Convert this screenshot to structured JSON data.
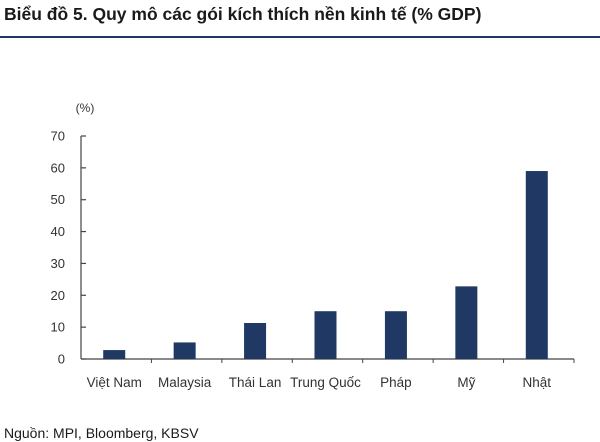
{
  "chart_data": {
    "type": "bar",
    "title": "Biểu đồ 5. Quy mô các gói kích thích nền kinh tế (% GDP)",
    "ylabel": "(%)",
    "xlabel": "",
    "categories": [
      "Việt Nam",
      "Malaysia",
      "Thái Lan",
      "Trung Quốc",
      "Pháp",
      "Mỹ",
      "Nhật"
    ],
    "values": [
      2.8,
      5.2,
      11.3,
      15,
      15,
      22.8,
      59
    ],
    "ylim": [
      0,
      70
    ],
    "yticks": [
      0,
      10,
      20,
      30,
      40,
      50,
      60,
      70
    ],
    "grid": false,
    "bar_color": "#1f3864"
  },
  "source": "Nguồn: MPI, Bloomberg, KBSV"
}
